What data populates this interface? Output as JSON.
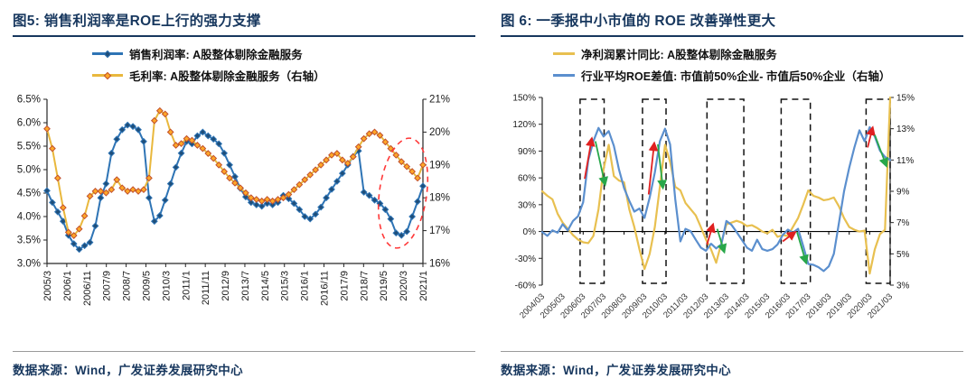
{
  "accent_color": "#17375e",
  "chart_data": [
    {
      "id": "fig5",
      "type": "line",
      "title": "图5:  销售利润率是ROE上行的强力支撑",
      "source": "数据来源：Wind，广发证券发展研究中心",
      "legend_position": "top-center",
      "x_axis_position": "bottom",
      "x_unit": "quarter",
      "x_labels": [
        "2005/3",
        "2006/1",
        "2006/11",
        "2007/9",
        "2008/7",
        "2009/5",
        "2010/3",
        "2011/1",
        "2011/11",
        "2012/9",
        "2013/7",
        "2014/5",
        "2015/3",
        "2016/1",
        "2016/11",
        "2017/9",
        "2018/7",
        "2019/5",
        "2020/3",
        "2021/1"
      ],
      "left_axis": {
        "min": 3.0,
        "max": 6.5,
        "step": 0.5,
        "unit": "%"
      },
      "right_axis": {
        "min": 16,
        "max": 21,
        "step": 1,
        "unit": "%"
      },
      "left_ticks": [
        "6.5%",
        "6.0%",
        "5.5%",
        "5.0%",
        "4.5%",
        "4.0%",
        "3.5%",
        "3.0%"
      ],
      "right_ticks": [
        "21%",
        "20%",
        "19%",
        "18%",
        "17%",
        "16%"
      ],
      "series": [
        {
          "name": "销售利润率: A股整体剔除金融服务",
          "axis": "left",
          "color": "#2e74b5",
          "marker": true,
          "marker_fill": "#1f4e79",
          "marker_edge": "#2e74b5",
          "values": [
            4.55,
            4.3,
            4.1,
            3.9,
            3.6,
            3.42,
            3.3,
            3.38,
            3.45,
            3.8,
            4.4,
            4.7,
            5.35,
            5.65,
            5.85,
            5.95,
            5.92,
            5.85,
            5.6,
            4.4,
            3.9,
            4.02,
            4.35,
            4.7,
            5.05,
            5.35,
            5.6,
            5.55,
            5.72,
            5.8,
            5.72,
            5.65,
            5.55,
            5.35,
            5.1,
            4.85,
            4.6,
            4.42,
            4.3,
            4.25,
            4.22,
            4.28,
            4.25,
            4.3,
            4.45,
            4.38,
            4.28,
            4.15,
            4.0,
            3.95,
            4.05,
            4.2,
            4.4,
            4.58,
            4.75,
            4.92,
            5.1,
            5.28,
            5.4,
            4.52,
            4.45,
            4.35,
            4.28,
            4.15,
            3.95,
            3.65,
            3.6,
            3.68,
            4.0,
            4.32,
            4.65
          ]
        },
        {
          "name": "毛利率: A股整体剔除金融服务（右轴）",
          "axis": "right",
          "color": "#e9b83d",
          "marker": true,
          "marker_fill": "#ffa727",
          "marker_edge": "#c0502d",
          "values": [
            20.1,
            19.5,
            18.6,
            17.7,
            16.95,
            16.85,
            17.05,
            17.45,
            18.05,
            18.2,
            18.2,
            18.15,
            18.25,
            18.55,
            18.3,
            18.2,
            18.25,
            18.2,
            18.25,
            18.6,
            20.35,
            20.65,
            20.55,
            20.0,
            19.6,
            19.65,
            19.8,
            19.75,
            19.6,
            19.5,
            19.35,
            19.2,
            19.0,
            18.8,
            18.6,
            18.45,
            18.3,
            18.15,
            18.0,
            17.95,
            17.9,
            17.95,
            17.9,
            17.95,
            18.0,
            18.1,
            18.25,
            18.4,
            18.55,
            18.7,
            18.85,
            19.0,
            19.15,
            19.3,
            19.35,
            19.15,
            19.05,
            19.25,
            19.55,
            19.8,
            19.95,
            20.0,
            19.9,
            19.7,
            19.5,
            19.3,
            19.1,
            18.95,
            18.8,
            18.6,
            19.0
          ]
        }
      ],
      "annotation_ellipse": {
        "cx_idx": 66.3,
        "cy_val": 4.5,
        "rx_idx": 4.4,
        "ry_val": 1.18,
        "rotate": 8,
        "color": "#ff3838"
      }
    },
    {
      "id": "fig6",
      "type": "line",
      "title": "图 6:  一季报中小市值的 ROE 改善弹性更大",
      "source": "数据来源：Wind，广发证券发展研究中心",
      "legend_position": "top-left",
      "x_axis_position": "zero",
      "x_unit": "quarter",
      "x_labels": [
        "2004/03",
        "2005/03",
        "2006/03",
        "2007/03",
        "2008/03",
        "2009/03",
        "2010/03",
        "2011/03",
        "2012/03",
        "2013/03",
        "2014/03",
        "2015/03",
        "2016/03",
        "2017/03",
        "2018/03",
        "2019/03",
        "2020/03",
        "2021/03"
      ],
      "left_axis": {
        "min": -60,
        "max": 150,
        "step": 30,
        "unit": "%"
      },
      "right_axis": {
        "min": 3,
        "max": 15,
        "step": 2,
        "unit": "%"
      },
      "left_ticks": [
        "150%",
        "120%",
        "90%",
        "60%",
        "30%",
        "0%",
        "-30%",
        "-60%"
      ],
      "right_ticks": [
        "15%",
        "13%",
        "11%",
        "9%",
        "7%",
        "5%",
        "3%"
      ],
      "series": [
        {
          "name": "净利润累计同比: A股整体剔除金融服务",
          "axis": "left",
          "color": "#e8c050",
          "marker": false,
          "values": [
            45,
            40,
            36,
            20,
            10,
            3,
            -4,
            -9,
            -12,
            -13,
            -5,
            25,
            70,
            97,
            62,
            57,
            55,
            25,
            5,
            -20,
            -42,
            -25,
            5,
            50,
            97,
            78,
            50,
            46,
            32,
            25,
            18,
            5,
            -9,
            -20,
            -35,
            -13,
            8,
            10,
            12,
            10,
            6,
            7,
            4,
            0,
            -2,
            2,
            -6,
            -4,
            -5,
            5,
            15,
            30,
            46,
            40,
            38,
            35,
            36,
            38,
            28,
            15,
            5,
            2,
            0,
            1,
            -47,
            -20,
            -3,
            2,
            150
          ]
        },
        {
          "name": "行业平均ROE差值: 市值前50%企业- 市值后50%企业（右轴）",
          "axis": "right",
          "color": "#5b8fce",
          "marker": false,
          "values": [
            6.4,
            6.15,
            6.5,
            6.35,
            6.9,
            6.5,
            7.1,
            7.4,
            8.3,
            11.0,
            12.2,
            13.05,
            12.5,
            12.85,
            11.9,
            10.4,
            9.2,
            8.4,
            7.7,
            7.9,
            7.3,
            8.6,
            10.2,
            12.2,
            13.0,
            12.0,
            8.5,
            5.8,
            6.6,
            6.45,
            5.9,
            5.4,
            5.2,
            5.65,
            5.35,
            5.6,
            7.1,
            6.85,
            6.4,
            5.9,
            5.4,
            5.2,
            5.9,
            5.3,
            5.2,
            5.3,
            5.6,
            6.2,
            6.55,
            6.35,
            6.6,
            5.5,
            4.35,
            4.3,
            4.15,
            3.9,
            4.2,
            5.0,
            7.0,
            9.0,
            10.5,
            11.8,
            12.9,
            12.2,
            13.1,
            12.5,
            11.6,
            11.2,
            11.0
          ]
        }
      ],
      "boxes": [
        [
          7.4,
          12.1
        ],
        [
          19.6,
          24.2
        ],
        [
          32.2,
          39.4
        ],
        [
          46.7,
          52.4
        ],
        [
          63.3,
          68.0
        ]
      ],
      "arrows": [
        {
          "color": "red",
          "from": [
            8.3,
            9.8
          ],
          "to": [
            9.7,
            12.4
          ]
        },
        {
          "color": "green",
          "from": [
            10.4,
            12.2
          ],
          "to": [
            12.3,
            9.4
          ]
        },
        {
          "color": "red",
          "from": [
            20.8,
            8.8
          ],
          "to": [
            21.9,
            12.1
          ]
        },
        {
          "color": "green",
          "from": [
            22.6,
            12.0
          ],
          "to": [
            23.6,
            9.2
          ]
        },
        {
          "color": "red",
          "from": [
            32.2,
            5.6
          ],
          "to": [
            33.4,
            6.9
          ]
        },
        {
          "color": "green",
          "from": [
            34.2,
            6.6
          ],
          "to": [
            35.6,
            5.1
          ]
        },
        {
          "color": "red",
          "from": [
            47.0,
            5.8
          ],
          "to": [
            49.5,
            6.4
          ]
        },
        {
          "color": "green",
          "from": [
            49.8,
            6.4
          ],
          "to": [
            51.6,
            4.4
          ]
        },
        {
          "color": "red",
          "from": [
            63.6,
            11.8
          ],
          "to": [
            64.6,
            13.1
          ]
        },
        {
          "color": "green",
          "from": [
            65.0,
            12.6
          ],
          "to": [
            67.3,
            10.6
          ]
        }
      ]
    }
  ]
}
